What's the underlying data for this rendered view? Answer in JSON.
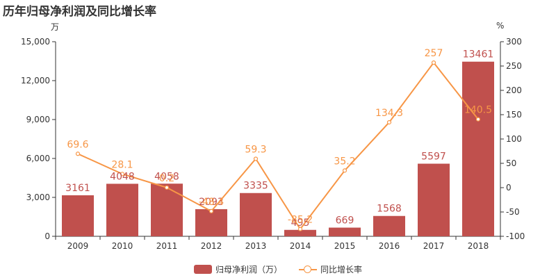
{
  "header": {
    "title": "历年归母净利润及同比增长率",
    "left_unit": "万",
    "right_unit": "%"
  },
  "legend": {
    "bar_label": "归母净利润（万）",
    "line_label": "同比增长率"
  },
  "colors": {
    "bar": "#c0504d",
    "line": "#f79646",
    "axis": "#333333"
  },
  "chart_data": {
    "type": "bar",
    "categories": [
      "2009",
      "2010",
      "2011",
      "2012",
      "2013",
      "2014",
      "2015",
      "2016",
      "2017",
      "2018"
    ],
    "series": [
      {
        "name": "归母净利润（万）",
        "type": "bar",
        "axis": "left",
        "values": [
          3161,
          4048,
          4058,
          2093,
          3335,
          495,
          669,
          1568,
          5597,
          13461
        ],
        "labels": [
          "3161",
          "4048",
          "4058",
          "2093",
          "3335",
          "495",
          "669",
          "1568",
          "5597",
          "13461"
        ]
      },
      {
        "name": "同比增长率",
        "type": "line",
        "axis": "right",
        "values": [
          69.6,
          28.1,
          0.2,
          -48.4,
          59.3,
          -85.2,
          35.2,
          134.3,
          257,
          140.5
        ],
        "labels": [
          "69.6",
          "28.1",
          "0.2",
          "-48.4",
          "59.3",
          "-85.2",
          "35.2",
          "134.3",
          "257",
          "140.5"
        ]
      }
    ],
    "left_axis": {
      "min": 0,
      "max": 15000,
      "ticks": [
        0,
        3000,
        6000,
        9000,
        12000,
        15000
      ],
      "tick_labels": [
        "0",
        "3,000",
        "6,000",
        "9,000",
        "12,000",
        "15,000"
      ]
    },
    "right_axis": {
      "min": -100,
      "max": 300,
      "ticks": [
        -100,
        -50,
        0,
        50,
        100,
        150,
        200,
        250,
        300
      ],
      "tick_labels": [
        "-100",
        "-50",
        "0",
        "50",
        "100",
        "150",
        "200",
        "250",
        "300"
      ]
    },
    "grid": false,
    "legend_position": "bottom"
  }
}
